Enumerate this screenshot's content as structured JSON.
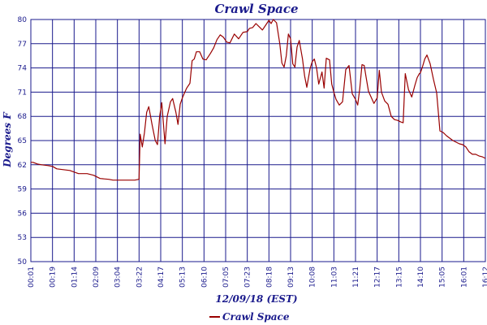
{
  "chart_data": {
    "type": "line",
    "title": "Crawl Space",
    "xlabel": "12/09/18 (EST)",
    "ylabel": "Degrees F",
    "ylim": [
      50,
      80
    ],
    "yticks": [
      50,
      53,
      56,
      59,
      62,
      65,
      68,
      71,
      74,
      77,
      80
    ],
    "xticks": [
      "00:01",
      "00:19",
      "01:14",
      "02:09",
      "03:04",
      "03:22",
      "04:17",
      "05:13",
      "06:10",
      "07:05",
      "07:23",
      "08:18",
      "09:13",
      "10:08",
      "11:03",
      "11:21",
      "12:17",
      "13:15",
      "14:10",
      "15:05",
      "16:01",
      "16:12"
    ],
    "grid": true,
    "legend_position": "bottom-left",
    "colors": {
      "line": "#990000",
      "grid": "#1a1a8c",
      "text": "#1a1a8c",
      "background": "#ffffff"
    },
    "series": [
      {
        "name": "Crawl Space",
        "x": [
          0,
          0.1,
          0.3,
          0.5,
          0.8,
          1,
          1.2,
          1.5,
          1.8,
          2.2,
          2.6,
          2.9,
          3.2,
          3.6,
          3.8,
          4,
          4.2,
          4.5,
          4.8,
          5,
          5.05,
          5.15,
          5.25,
          5.35,
          5.45,
          5.6,
          5.75,
          5.85,
          5.95,
          6.05,
          6.2,
          6.3,
          6.45,
          6.55,
          6.7,
          6.8,
          6.9,
          7,
          7.1,
          7.2,
          7.35,
          7.45,
          7.55,
          7.65,
          7.8,
          7.95,
          8.1,
          8.3,
          8.45,
          8.6,
          8.75,
          8.9,
          9.05,
          9.2,
          9.4,
          9.6,
          9.8,
          10,
          10.1,
          10.25,
          10.4,
          10.55,
          10.7,
          10.85,
          11,
          11.1,
          11.2,
          11.35,
          11.5,
          11.6,
          11.7,
          11.8,
          11.9,
          12,
          12.1,
          12.2,
          12.3,
          12.4,
          12.55,
          12.65,
          12.75,
          12.9,
          13,
          13.1,
          13.2,
          13.3,
          13.45,
          13.55,
          13.65,
          13.8,
          13.9,
          14,
          14.1,
          14.25,
          14.4,
          14.55,
          14.7,
          14.85,
          15,
          15.1,
          15.2,
          15.3,
          15.4,
          15.5,
          15.6,
          15.7,
          15.85,
          16,
          16.1,
          16.2,
          16.35,
          16.5,
          16.65,
          16.8,
          16.95,
          17.1,
          17.2,
          17.3,
          17.45,
          17.6,
          17.75,
          17.85,
          17.95,
          18,
          18.1,
          18.2,
          18.3,
          18.45,
          18.6,
          18.75,
          18.9,
          19.05,
          19.2,
          19.35,
          19.5,
          19.65,
          19.8,
          19.95,
          20.1,
          20.25,
          20.4,
          20.55,
          20.7,
          20.85,
          21
        ],
        "values": [
          62.3,
          62.3,
          62.1,
          62,
          61.9,
          61.8,
          61.5,
          61.4,
          61.3,
          60.9,
          60.9,
          60.7,
          60.3,
          60.2,
          60.1,
          60.1,
          60.1,
          60.1,
          60.1,
          60.2,
          65.8,
          64.2,
          66,
          68.5,
          69.2,
          67,
          65,
          64.5,
          68,
          69.7,
          64.6,
          68,
          69.8,
          70.2,
          68.5,
          67,
          69.5,
          70.3,
          70.9,
          71.5,
          72.1,
          74.9,
          75.1,
          76,
          76,
          75.1,
          75,
          75.8,
          76.5,
          77.5,
          78.1,
          77.8,
          77.2,
          77.1,
          78.2,
          77.6,
          78.4,
          78.5,
          78.9,
          79,
          79.5,
          79.1,
          78.7,
          79.3,
          79.9,
          79.5,
          80,
          79.6,
          77,
          74.6,
          74.1,
          75.5,
          78.2,
          77.6,
          74.5,
          74.1,
          76.6,
          77.4,
          75.1,
          73,
          71.6,
          73.9,
          74.8,
          75.1,
          74,
          72,
          73.5,
          71.5,
          75.2,
          75,
          72,
          71,
          70.1,
          69.4,
          69.8,
          73.8,
          74.3,
          70.8,
          70.1,
          69.4,
          71.5,
          74.4,
          74.3,
          72.7,
          71.1,
          70.5,
          69.6,
          70.3,
          73.7,
          71,
          69.9,
          69.5,
          68,
          67.6,
          67.5,
          67.3,
          67.2,
          73.3,
          71.3,
          70.4,
          71.9,
          72.8,
          73.3,
          73.4,
          74.2,
          75.1,
          75.6,
          74.5,
          72.6,
          70.9,
          66.2,
          66,
          65.6,
          65.3,
          65,
          64.8,
          64.6,
          64.5,
          64.2,
          63.6,
          63.3,
          63.3,
          63.1,
          63,
          62.8
        ]
      }
    ]
  }
}
